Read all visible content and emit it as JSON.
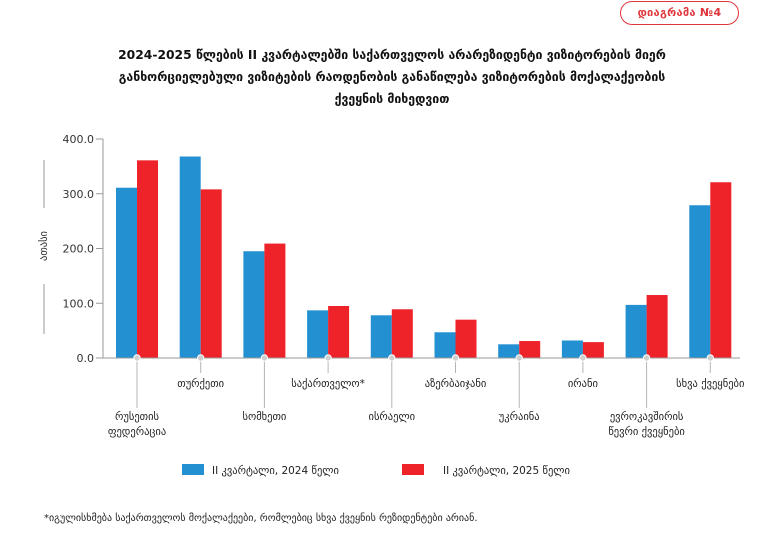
{
  "badge": "დიაგრამა №4",
  "title_lines": [
    "2024-2025 წლების II კვარტალებში საქართველოს არარეზიდენტი ვიზიტორების მიერ",
    "განხორციელებული ვიზიტების რაოდენობის განაწილება ვიზიტორების მოქალაქეობის",
    "ქვეყნის მიხედვით"
  ],
  "footnote": "*იგულისხმება საქართველოს მოქალაქეები, რომლებიც სხვა ქვეყნის რეზიდენტები არიან.",
  "colors": {
    "s2024": "#2390d2",
    "s2025": "#ee2229",
    "accent": "#e0353b"
  },
  "chart_data": {
    "type": "bar",
    "ylabel": "ათასი",
    "ylim": [
      0,
      400
    ],
    "yticks": [
      "0.0",
      "100.0",
      "200.0",
      "300.0",
      "400.0"
    ],
    "ytick_values": [
      0,
      100,
      200,
      300,
      400
    ],
    "categories": [
      [
        "რუსეთის",
        "ფედერაცია"
      ],
      [
        "თურქეთი"
      ],
      [
        "სომხეთი"
      ],
      [
        "საქართველო*"
      ],
      [
        "ისრაელი"
      ],
      [
        "აზერბაიჯანი"
      ],
      [
        "უკრაინა"
      ],
      [
        "ირანი"
      ],
      [
        "ევროკავშირის",
        "წევრი ქვეყნები"
      ],
      [
        "სხვა ქვეყნები"
      ]
    ],
    "series": [
      {
        "name": "II კვარტალი, 2024 წელი",
        "values": [
          311,
          368,
          195,
          87,
          78,
          47,
          25,
          32,
          97,
          279
        ]
      },
      {
        "name": "II კვარტალი, 2025 წელი",
        "values": [
          361,
          308,
          209,
          95,
          89,
          70,
          31,
          29,
          115,
          321
        ]
      }
    ]
  }
}
